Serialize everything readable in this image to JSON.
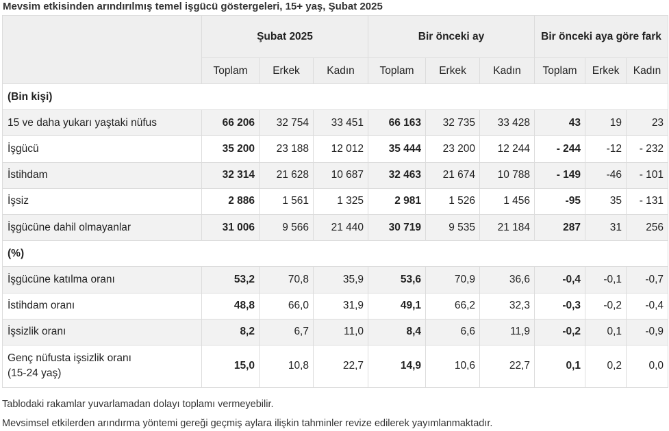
{
  "title": "Mevsim etkisinden arındırılmış temel işgücü göstergeleri, 15+ yaş, Şubat 2025",
  "header": {
    "groups": [
      "Şubat 2025",
      "Bir önceki ay",
      "Bir önceki aya göre fark"
    ],
    "subheaders": [
      "Toplam",
      "Erkek",
      "Kadın",
      "Toplam",
      "Erkek",
      "Kadın",
      "Toplam",
      "Erkek",
      "Kadın"
    ]
  },
  "sections": [
    {
      "label": "(Bin kişi)",
      "rows": [
        {
          "label": "15 ve daha yukarı yaştaki nüfus",
          "values": [
            "66 206",
            "32 754",
            "33 451",
            "66 163",
            "32 735",
            "33 428",
            "43",
            "19",
            "23"
          ]
        },
        {
          "label": "İşgücü",
          "values": [
            "35 200",
            "23 188",
            "12 012",
            "35 444",
            "23 200",
            "12 244",
            "- 244",
            "-12",
            "- 232"
          ]
        },
        {
          "label": "İstihdam",
          "values": [
            "32 314",
            "21 628",
            "10 687",
            "32 463",
            "21 674",
            "10 788",
            "- 149",
            "-46",
            "- 101"
          ]
        },
        {
          "label": "İşsiz",
          "values": [
            "2 886",
            "1 561",
            "1 325",
            "2 981",
            "1 526",
            "1 456",
            "-95",
            "35",
            "- 131"
          ]
        },
        {
          "label": "İşgücüne dahil olmayanlar",
          "values": [
            "31 006",
            "9 566",
            "21 440",
            "30 719",
            "9 535",
            "21 184",
            "287",
            "31",
            "256"
          ]
        }
      ]
    },
    {
      "label": "(%)",
      "rows": [
        {
          "label": "İşgücüne katılma oranı",
          "values": [
            "53,2",
            "70,8",
            "35,9",
            "53,6",
            "70,9",
            "36,6",
            "-0,4",
            "-0,1",
            "-0,7"
          ]
        },
        {
          "label": "İstihdam oranı",
          "values": [
            "48,8",
            "66,0",
            "31,9",
            "49,1",
            "66,2",
            "32,3",
            "-0,3",
            "-0,2",
            "-0,4"
          ]
        },
        {
          "label": "İşsizlik oranı",
          "values": [
            "8,2",
            "6,7",
            "11,0",
            "8,4",
            "6,6",
            "11,9",
            "-0,2",
            "0,1",
            "-0,9"
          ]
        },
        {
          "label": "Genç nüfusta işsizlik oranı",
          "label2": "(15-24 yaş)",
          "values": [
            "15,0",
            "10,8",
            "22,7",
            "14,9",
            "10,6",
            "22,7",
            "0,1",
            "0,2",
            "0,0"
          ]
        }
      ]
    }
  ],
  "notes": [
    "Tablodaki rakamlar yuvarlamadan dolayı toplamı vermeyebilir.",
    "Mevsimsel etkilerden arındırma yöntemi gereği geçmiş aylara ilişkin tahminler revize edilerek yayımlanmaktadır."
  ]
}
